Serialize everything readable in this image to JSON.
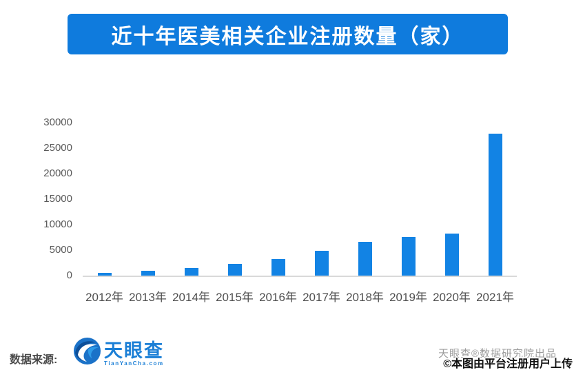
{
  "title": "近十年医美相关企业注册数量（家）",
  "chart_data": {
    "type": "bar",
    "title": "近十年医美相关企业注册数量（家）",
    "categories": [
      "2012年",
      "2013年",
      "2014年",
      "2015年",
      "2016年",
      "2017年",
      "2018年",
      "2019年",
      "2020年",
      "2021年"
    ],
    "values": [
      600,
      900,
      1500,
      2300,
      3200,
      4800,
      6600,
      7600,
      8300,
      27900
    ],
    "xlabel": "",
    "ylabel": "",
    "ylim": [
      0,
      30000
    ],
    "yticks": [
      0,
      5000,
      10000,
      15000,
      20000,
      25000,
      30000
    ],
    "grid": false,
    "legend": false
  },
  "colors": {
    "banner_blue": "#0f7bdd",
    "bar_blue": "#1283e4",
    "axis_line_gray": "#d9d9d9",
    "logo_blue": "#1b7fd6"
  },
  "footer": {
    "source_label": "数据来源:",
    "logo_text": "天眼查",
    "logo_subtext": "TianYanCha.com",
    "credit": "天眼查®数据研究院出品",
    "watermark": "©本图由平台注册用户上传"
  }
}
